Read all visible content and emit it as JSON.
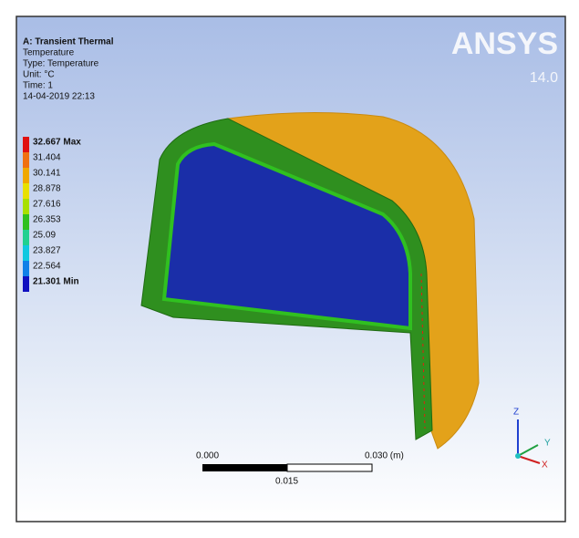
{
  "header": {
    "lines": [
      "A: Transient Thermal",
      "Temperature",
      "Type: Temperature",
      "Unit: °C",
      "Time: 1",
      "14-04-2019 22:13"
    ]
  },
  "legend": {
    "entries": [
      {
        "label": "32.667 Max",
        "color": "#e01010"
      },
      {
        "label": "31.404",
        "color": "#f07010"
      },
      {
        "label": "30.141",
        "color": "#f0a800"
      },
      {
        "label": "28.878",
        "color": "#e8e000"
      },
      {
        "label": "27.616",
        "color": "#a8e000"
      },
      {
        "label": "26.353",
        "color": "#30c020"
      },
      {
        "label": "25.09",
        "color": "#20d090"
      },
      {
        "label": "23.827",
        "color": "#10c8e0"
      },
      {
        "label": "22.564",
        "color": "#1080e8"
      },
      {
        "label": "21.301 Min",
        "color": "#1010c0"
      }
    ]
  },
  "logo": {
    "brand": "ANSYS",
    "version": "14.0"
  },
  "scale_bar": {
    "left": "0.000",
    "right": "0.030 (m)",
    "middle": "0.015"
  },
  "triad": {
    "z": "Z",
    "y": "Y",
    "x": "X"
  }
}
